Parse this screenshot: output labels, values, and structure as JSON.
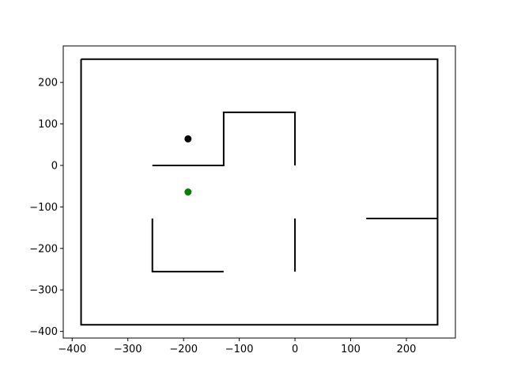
{
  "chart_data": {
    "type": "scatter",
    "title": "",
    "xlabel": "",
    "ylabel": "",
    "xlim": [
      -416,
      288
    ],
    "ylim": [
      -416,
      288
    ],
    "grid": false,
    "x_ticks": [
      -400,
      -300,
      -200,
      -100,
      0,
      100,
      200
    ],
    "y_ticks": [
      -400,
      -300,
      -200,
      -100,
      0,
      100,
      200
    ],
    "x_tick_labels": [
      "−400",
      "−300",
      "−200",
      "−100",
      "0",
      "100",
      "200"
    ],
    "y_tick_labels": [
      "−400",
      "−300",
      "−200",
      "−100",
      "0",
      "100",
      "200"
    ],
    "walls": [
      {
        "points": [
          [
            -384,
            256
          ],
          [
            256,
            256
          ],
          [
            256,
            -384
          ],
          [
            -384,
            -384
          ],
          [
            -384,
            256
          ]
        ]
      },
      {
        "points": [
          [
            -256,
            0
          ],
          [
            -128,
            0
          ],
          [
            -128,
            128
          ],
          [
            0,
            128
          ],
          [
            0,
            0
          ]
        ]
      },
      {
        "points": [
          [
            -256,
            -128
          ],
          [
            -256,
            -256
          ],
          [
            -128,
            -256
          ]
        ]
      },
      {
        "points": [
          [
            0,
            -128
          ],
          [
            0,
            -256
          ]
        ]
      },
      {
        "points": [
          [
            128,
            -128
          ],
          [
            256,
            -128
          ]
        ]
      }
    ],
    "points": [
      {
        "x": -192,
        "y": 64,
        "color": "#000000"
      },
      {
        "x": -192,
        "y": -64,
        "color": "#008000"
      }
    ],
    "colors": {
      "wall": "#000000",
      "axes": "#000000"
    }
  }
}
